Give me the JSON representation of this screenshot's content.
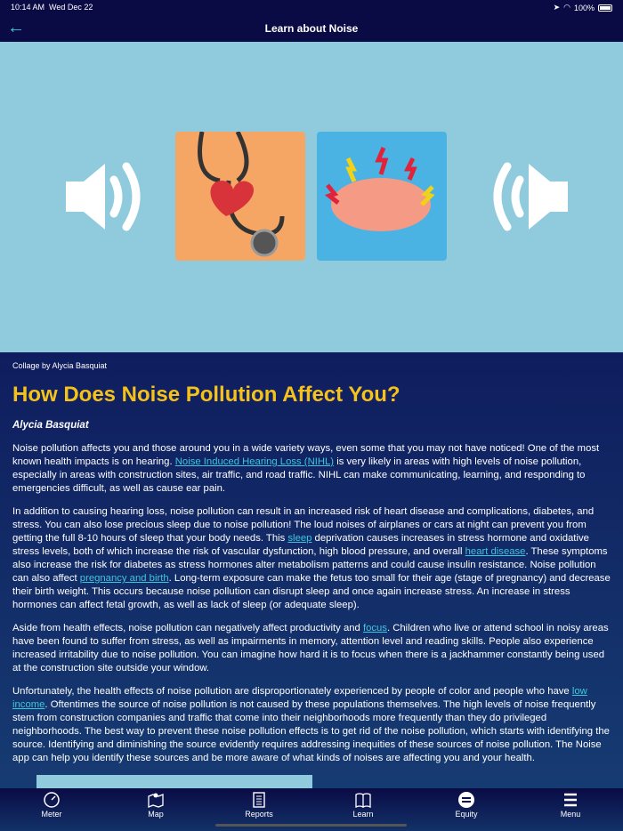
{
  "status": {
    "time": "10:14 AM",
    "date": "Wed Dec 22",
    "battery": "100%"
  },
  "nav": {
    "title": "Learn about Noise",
    "back_icon": "arrow-left-icon"
  },
  "colors": {
    "accent": "#3ec6e0",
    "title": "#f4c21b",
    "hero_bg": "#8fcbdc",
    "nav_bg": "#0a0b45"
  },
  "article": {
    "caption": "Collage by Alycia Basquiat",
    "title": "How Does Noise Pollution Affect You?",
    "author": "Alycia Basquiat",
    "paragraphs": [
      [
        {
          "t": "Noise pollution affects you and those around you in a wide variety ways, even some that you may not have noticed! One of the most known health impacts is on hearing. "
        },
        {
          "t": "Noise Induced Hearing Loss (NIHL)",
          "link": true
        },
        {
          "t": " is very likely in areas with high levels of noise pollution, especially in areas with construction sites, air traffic, and road traffic. NIHL can make communicating, learning, and responding to emergencies difficult, as well as cause ear pain."
        }
      ],
      [
        {
          "t": "In addition to causing hearing loss, noise pollution can result in an increased risk of heart disease and complications, diabetes, and stress. You can also lose precious sleep due to noise pollution! The loud noises of airplanes or cars at night can prevent you from getting the full 8-10 hours of sleep that your body needs. This "
        },
        {
          "t": "sleep",
          "link": true
        },
        {
          "t": " deprivation causes increases in stress hormone and oxidative stress levels, both of which increase the risk of vascular dysfunction, high blood pressure, and overall "
        },
        {
          "t": "heart disease",
          "link": true
        },
        {
          "t": ". These symptoms also increase the risk for diabetes as stress hormones alter metabolism patterns and could cause insulin resistance. Noise pollution can also affect "
        },
        {
          "t": "pregnancy and birth",
          "link": true
        },
        {
          "t": ". Long-term exposure can make the fetus too small for their age (stage of pregnancy) and decrease their birth weight. This occurs because noise pollution can disrupt sleep and once again increase stress. An increase in stress hormones can affect fetal growth, as well as lack of sleep (or adequate sleep)."
        }
      ],
      [
        {
          "t": "Aside from health effects, noise pollution can negatively affect productivity and "
        },
        {
          "t": "focus",
          "link": true
        },
        {
          "t": ". Children who live or attend school in noisy areas have been found to suffer from stress, as well as impairments in memory, attention level and reading skills. People also experience increased irritability due to noise pollution. You can imagine how hard it is to focus when there is a jackhammer constantly being used at the construction site outside your window."
        }
      ],
      [
        {
          "t": "Unfortunately, the health effects of noise pollution are disproportionately experienced by people of color and people who have "
        },
        {
          "t": "low income",
          "link": true
        },
        {
          "t": ". Oftentimes the source of noise pollution is not caused by these populations themselves. The high levels of noise frequently stem from construction companies and traffic that come into their neighborhoods more frequently than they do privileged neighborhoods. The best way to prevent these noise pollution effects is to get rid of the noise pollution, which starts with identifying the source. Identifying and diminishing the source evidently requires addressing inequities of these sources of noise pollution. The Noise app can help you identify these sources and be more aware of what kinds of noises are affecting you and your health."
        }
      ]
    ]
  },
  "tabs": [
    {
      "label": "Meter",
      "icon": "speedometer-icon"
    },
    {
      "label": "Map",
      "icon": "map-pin-icon"
    },
    {
      "label": "Reports",
      "icon": "document-icon"
    },
    {
      "label": "Learn",
      "icon": "book-icon"
    },
    {
      "label": "Equity",
      "icon": "equals-circle-icon"
    },
    {
      "label": "Menu",
      "icon": "hamburger-icon"
    }
  ]
}
